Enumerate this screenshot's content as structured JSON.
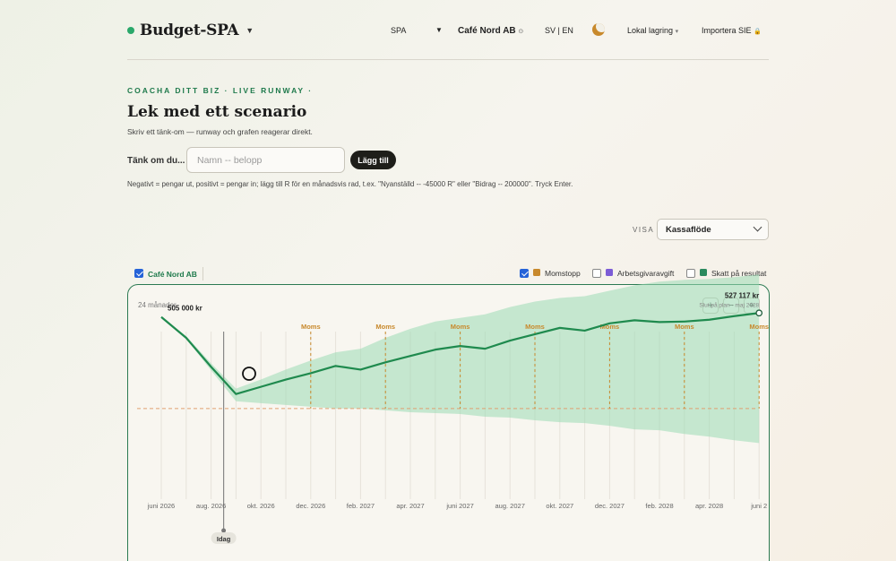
{
  "header": {
    "app_title": "Budget-SPA",
    "mode": "SPA",
    "org_name": "Café Nord AB",
    "org_icon": "⊙",
    "language": "SV | EN",
    "theme_icon": "moon-icon",
    "storage": "Lokal lagring",
    "storage_caret": "▾",
    "import": "Importera SIE",
    "import_icon": "🔒"
  },
  "scenario": {
    "eyebrow": "COACHA DITT BIZ · LIVE RUNWAY ·",
    "title": "Lek med ett scenario",
    "subtitle": "Skriv ett tänk-om — runway och grafen reagerar direkt.",
    "ask_label": "Tänk om du...",
    "input_placeholder": "Namn -- belopp",
    "add_button": "Lägg till",
    "hint": "Negativt = pengar ut, positivt = pengar in; lägg till R för en månadsvis rad, t.ex. \"Nyanställd -- -45000 R\" eller \"Bidrag -- 200000\". Tryck Enter."
  },
  "view": {
    "label": "VISA",
    "selected": "Kassaflöde"
  },
  "toggles": {
    "company": {
      "label": "Café Nord AB",
      "checked": true
    },
    "items": [
      {
        "label": "Momstopp",
        "checked": true,
        "color": "#c8892c"
      },
      {
        "label": "Arbetsgivaravgift",
        "checked": false,
        "color": "#7c5cd6"
      },
      {
        "label": "Skatt på resultat",
        "checked": false,
        "color": "#2a8a5e"
      }
    ]
  },
  "chart_panel": {
    "months_label": "24 månader",
    "zoom_in": "+",
    "zoom_out": "−",
    "reset": "⌖"
  },
  "chart_data": {
    "type": "line",
    "x": [
      "2026-05",
      "2026-06",
      "2026-07",
      "2026-08",
      "2026-09",
      "2026-10",
      "2026-11",
      "2026-12",
      "2027-01",
      "2027-02",
      "2027-03",
      "2027-04",
      "2027-05",
      "2027-06",
      "2027-07",
      "2027-08",
      "2027-09",
      "2027-10",
      "2027-11",
      "2027-12",
      "2028-01",
      "2028-02",
      "2028-03",
      "2028-04",
      "2028-05"
    ],
    "tick_labels": [
      "juni 2026",
      "aug. 2026",
      "okt. 2026",
      "dec. 2026",
      "feb. 2027",
      "apr. 2027",
      "juni 2027",
      "aug. 2027",
      "okt. 2027",
      "dec. 2027",
      "feb. 2028",
      "apr. 2028",
      "juni 2"
    ],
    "series": [
      {
        "values": [
          505000,
          390000,
          230000,
          80000,
          120000,
          160000,
          195000,
          235000,
          215000,
          255000,
          290000,
          325000,
          345000,
          330000,
          375000,
          410000,
          445000,
          430000,
          470000,
          487000,
          477000,
          480000,
          490000,
          510000,
          527117
        ]
      }
    ],
    "band_low": [
      505000,
      385000,
      210000,
      40000,
      30000,
      20000,
      10000,
      0,
      0,
      -10000,
      -20000,
      -25000,
      -30000,
      -45000,
      -50000,
      -65000,
      -75000,
      -80000,
      -95000,
      -115000,
      -120000,
      -140000,
      -155000,
      -175000,
      -190000
    ],
    "band_high": [
      505000,
      400000,
      250000,
      110000,
      160000,
      215000,
      265000,
      310000,
      330000,
      390000,
      440000,
      480000,
      500000,
      520000,
      560000,
      590000,
      610000,
      620000,
      650000,
      680000,
      700000,
      710000,
      715000,
      725000,
      740000
    ],
    "moms_label": "Moms",
    "moms_months": [
      "2026-11",
      "2027-02",
      "2027-05",
      "2027-08",
      "2027-11",
      "2028-02",
      "2028-05"
    ],
    "today_label": "Idag",
    "today_x": "2026-07",
    "start_annotation": "505 000 kr",
    "end_annotation": "527 117 kr",
    "end_subtitle": "Slut på plan · maj 2028",
    "ylim": [
      -480000,
      760000
    ],
    "zero_line": true,
    "colors": {
      "line": "#1f8a4e",
      "band": "#9adbb5",
      "moms": "#c8892c",
      "zero": "#e0a070"
    }
  }
}
